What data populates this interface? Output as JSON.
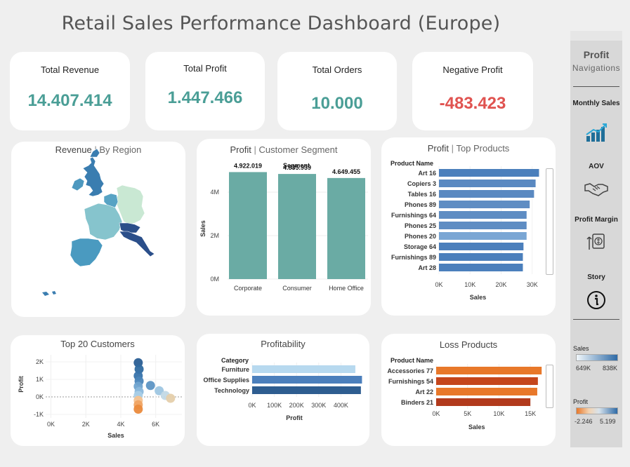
{
  "page": {
    "title": "Retail Sales Performance Dashboard (Europe)"
  },
  "kpis": {
    "revenue": {
      "label": "Total Revenue",
      "value": "14.407.414"
    },
    "profit": {
      "label": "Total Profit",
      "value": "1.447.466"
    },
    "orders": {
      "label": "Total Orders",
      "value": "10.000"
    },
    "negative": {
      "label": "Negative Profit",
      "value": "-483.423"
    }
  },
  "map_card": {
    "title": "Revenue",
    "sep": "|",
    "subtitle": "By Region"
  },
  "segment_card": {
    "title": "Profit",
    "sep": "|",
    "subtitle": "Customer Segment",
    "chart_data": {
      "type": "bar",
      "header": "Segment",
      "categories": [
        "Corporate",
        "Consumer",
        "Home Office"
      ],
      "values": [
        4922019,
        4835939,
        4649455
      ],
      "value_labels": [
        "4.922.019",
        "4.835.939",
        "4.649.455"
      ],
      "ylabel": "Sales",
      "yticks": [
        "0M",
        "2M",
        "4M"
      ],
      "ylim": [
        0,
        5000000
      ],
      "color": "#6aaba4"
    }
  },
  "top_products_card": {
    "title": "Profit",
    "sep": "|",
    "subtitle": "Top Products",
    "chart_data": {
      "type": "bar",
      "orientation": "horizontal",
      "header": "Product Name",
      "categories": [
        "Art 16",
        "Copiers 3",
        "Tables 16",
        "Phones 89",
        "Furnishings 64",
        "Phones 25",
        "Phones 20",
        "Storage 64",
        "Furnishings 89",
        "Art 28"
      ],
      "values": [
        32200,
        31100,
        30600,
        29200,
        28200,
        28200,
        28200,
        27200,
        27000,
        27000
      ],
      "colors": [
        "#4b7fbc",
        "#5a89c1",
        "#5a89c1",
        "#5f8dc3",
        "#5f8dc3",
        "#5f8dc3",
        "#7aa6d4",
        "#4b7fbc",
        "#4b7fbc",
        "#4b7fbc"
      ],
      "xlabel": "Sales",
      "xticks": [
        "0K",
        "10K",
        "20K",
        "30K"
      ],
      "xlim": [
        0,
        33000
      ]
    }
  },
  "customers_card": {
    "title": "Top 20 Customers",
    "chart_data": {
      "type": "scatter",
      "xlabel": "Sales",
      "ylabel": "Profit",
      "xticks": [
        "0K",
        "2K",
        "4K",
        "6K"
      ],
      "yticks": [
        "-1K",
        "0K",
        "1K",
        "2K"
      ],
      "xlim": [
        -300,
        7500
      ],
      "ylim": [
        -1200,
        2400
      ],
      "points": [
        {
          "x": 5000,
          "y": 1950,
          "c": "#2a5e93"
        },
        {
          "x": 5050,
          "y": 1580,
          "c": "#2f6aa0"
        },
        {
          "x": 5000,
          "y": 1200,
          "c": "#3773ab"
        },
        {
          "x": 5050,
          "y": 900,
          "c": "#4a85b9"
        },
        {
          "x": 5000,
          "y": 600,
          "c": "#6fa3cf"
        },
        {
          "x": 5050,
          "y": 300,
          "c": "#8ab8dc"
        },
        {
          "x": 5000,
          "y": 80,
          "c": "#a9cde6"
        },
        {
          "x": 5000,
          "y": -200,
          "c": "#f6c28f"
        },
        {
          "x": 5000,
          "y": -450,
          "c": "#f0a463"
        },
        {
          "x": 5000,
          "y": -700,
          "c": "#ea8a3c"
        },
        {
          "x": 5700,
          "y": 650,
          "c": "#5d95c4"
        },
        {
          "x": 6200,
          "y": 350,
          "c": "#9ec6e2"
        },
        {
          "x": 6550,
          "y": 80,
          "c": "#c2d9e6"
        },
        {
          "x": 6850,
          "y": -80,
          "c": "#e5cfab"
        }
      ]
    }
  },
  "profitability_card": {
    "title": "Profitability",
    "chart_data": {
      "type": "bar",
      "orientation": "horizontal",
      "header": "Category",
      "categories": [
        "Furniture",
        "Office Supplies",
        "Technology"
      ],
      "values": [
        465000,
        495000,
        490000
      ],
      "colors": [
        "#b7d9ef",
        "#4b7fbc",
        "#2e5d90"
      ],
      "xlabel": "Profit",
      "xticks": [
        "0K",
        "100K",
        "200K",
        "300K",
        "400K"
      ],
      "xlim": [
        0,
        500000
      ]
    }
  },
  "loss_card": {
    "title": "Loss Products",
    "chart_data": {
      "type": "bar",
      "orientation": "horizontal",
      "header": "Product Name",
      "categories": [
        "Accessories 77",
        "Furnishings 54",
        "Art 22",
        "Binders 21"
      ],
      "values": [
        16800,
        16200,
        16100,
        15000
      ],
      "colors": [
        "#e8782a",
        "#c5461c",
        "#e8782a",
        "#b23a1c"
      ],
      "xlabel": "Sales",
      "xticks": [
        "0K",
        "5K",
        "10K",
        "15K"
      ],
      "xlim": [
        0,
        17000
      ]
    }
  },
  "sidebar": {
    "title": "Profit",
    "subtitle": "Navigations",
    "nav": [
      {
        "label": "Monthly Sales",
        "icon": "bar-chart-growth-icon"
      },
      {
        "label": "AOV",
        "icon": "handshake-icon"
      },
      {
        "label": "Profit Margin",
        "icon": "profit-margin-icon"
      },
      {
        "label": "Story",
        "icon": "info-icon"
      }
    ],
    "sales_legend": {
      "title": "Sales",
      "min": "649K",
      "max": "838K",
      "from": "#f1f7fb",
      "to": "#2e6aa6"
    },
    "profit_legend": {
      "title": "Profit",
      "min": "-2.246",
      "max": "5.199",
      "from": "#e8782a",
      "to": "#2e6aa6"
    }
  }
}
